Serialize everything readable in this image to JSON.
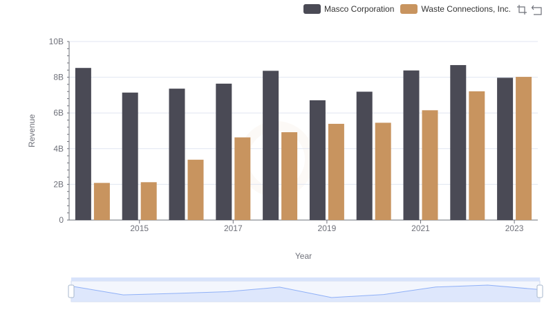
{
  "colors": {
    "series_1": "#4a4a55",
    "series_2": "#c8945f",
    "grid": "#e0e6f1",
    "axis": "#6e7079",
    "zoom_fill": "#d8e3fb",
    "zoom_line": "#8fb0f7"
  },
  "toolbox": {
    "zoom_icon": "zoom-crosshair-icon",
    "restore_icon": "restore-icon"
  },
  "chart_data": {
    "type": "bar",
    "categories": [
      "2014",
      "2015",
      "2016",
      "2017",
      "2018",
      "2019",
      "2020",
      "2021",
      "2022",
      "2023"
    ],
    "x_tick_labels": [
      "2015",
      "2017",
      "2019",
      "2021",
      "2023"
    ],
    "series": [
      {
        "name": "Masco Corporation",
        "values": [
          8.52,
          7.14,
          7.36,
          7.64,
          8.36,
          6.71,
          7.19,
          8.38,
          8.68,
          7.97
        ]
      },
      {
        "name": "Waste Connections, Inc.",
        "values": [
          2.08,
          2.12,
          3.38,
          4.63,
          4.92,
          5.39,
          5.45,
          6.15,
          7.21,
          8.02
        ]
      }
    ],
    "y_ticks": [
      "0",
      "2B",
      "4B",
      "6B",
      "8B",
      "10B"
    ],
    "ylim": [
      0,
      10
    ],
    "unit": "B",
    "xlabel": "Year",
    "ylabel": "Revenue",
    "grid": true,
    "legend": "top-right",
    "zoom_slider": true
  }
}
